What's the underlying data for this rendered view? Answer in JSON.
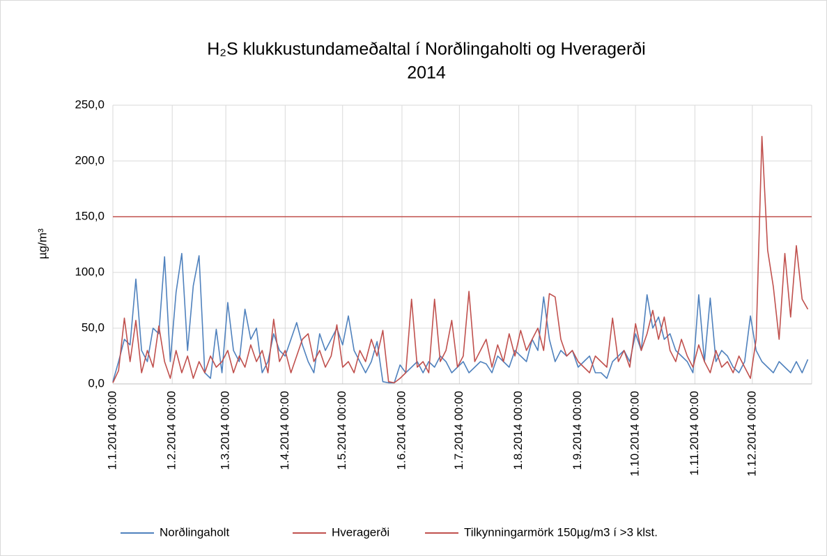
{
  "chart_data": {
    "type": "line",
    "title": "H₂S klukkustundameðaltal í Norðlingaholti og Hveragerði",
    "subtitle": "2014",
    "y_label": "µg/m³",
    "x": [
      0,
      3,
      6,
      9,
      12,
      15,
      18,
      21,
      24,
      27,
      30,
      33,
      36,
      39,
      42,
      45,
      48,
      51,
      54,
      57,
      60,
      63,
      66,
      69,
      72,
      75,
      78,
      81,
      84,
      87,
      90,
      93,
      96,
      99,
      102,
      105,
      108,
      111,
      114,
      117,
      120,
      123,
      126,
      129,
      132,
      135,
      138,
      141,
      144,
      147,
      150,
      153,
      156,
      159,
      162,
      165,
      168,
      171,
      174,
      177,
      180,
      183,
      186,
      189,
      192,
      195,
      198,
      201,
      204,
      207,
      210,
      213,
      216,
      219,
      222,
      225,
      228,
      231,
      234,
      237,
      240,
      243,
      246,
      249,
      252,
      255,
      258,
      261,
      264,
      267,
      270,
      273,
      276,
      279,
      282,
      285,
      288,
      291,
      294,
      297,
      300,
      303,
      306,
      309,
      312,
      315,
      318,
      321,
      324,
      327,
      330,
      333,
      336,
      339,
      342,
      345,
      348,
      351,
      354,
      357,
      360,
      363
    ],
    "series": [
      {
        "name": "Norðlingaholt",
        "color": "#4f81bd",
        "values": [
          2,
          20,
          40,
          35,
          94,
          30,
          20,
          50,
          45,
          114,
          20,
          82,
          117,
          30,
          88,
          115,
          10,
          5,
          49,
          10,
          73,
          30,
          20,
          67,
          40,
          50,
          10,
          20,
          45,
          30,
          25,
          40,
          55,
          35,
          20,
          10,
          45,
          30,
          40,
          50,
          35,
          61,
          30,
          20,
          10,
          20,
          38,
          2,
          1,
          1,
          17,
          10,
          15,
          20,
          10,
          20,
          15,
          25,
          20,
          10,
          15,
          20,
          10,
          15,
          20,
          18,
          10,
          25,
          20,
          15,
          30,
          25,
          20,
          40,
          30,
          78,
          40,
          20,
          30,
          25,
          30,
          15,
          20,
          25,
          10,
          10,
          5,
          20,
          25,
          30,
          20,
          45,
          30,
          80,
          50,
          60,
          40,
          45,
          30,
          25,
          20,
          10,
          80,
          20,
          77,
          20,
          30,
          25,
          15,
          10,
          20,
          61,
          30,
          20,
          15,
          10,
          20,
          15,
          10,
          20,
          10,
          22
        ]
      },
      {
        "name": "Hveragerði",
        "color": "#c0504d",
        "values": [
          1,
          12,
          59,
          20,
          57,
          10,
          30,
          15,
          52,
          20,
          5,
          30,
          10,
          25,
          5,
          20,
          10,
          25,
          15,
          20,
          30,
          10,
          25,
          15,
          35,
          20,
          30,
          10,
          58,
          20,
          30,
          10,
          25,
          40,
          45,
          20,
          30,
          15,
          25,
          53,
          15,
          20,
          10,
          30,
          20,
          40,
          25,
          48,
          2,
          1,
          5,
          10,
          76,
          15,
          20,
          10,
          76,
          20,
          30,
          57,
          15,
          25,
          83,
          20,
          30,
          40,
          15,
          35,
          20,
          45,
          25,
          48,
          30,
          40,
          50,
          30,
          81,
          78,
          40,
          25,
          30,
          20,
          15,
          10,
          25,
          20,
          15,
          59,
          20,
          30,
          15,
          54,
          30,
          45,
          66,
          40,
          60,
          30,
          20,
          40,
          25,
          15,
          35,
          20,
          10,
          30,
          15,
          20,
          10,
          25,
          15,
          5,
          40,
          222,
          120,
          87,
          40,
          117,
          60,
          124,
          76,
          67
        ]
      },
      {
        "name": "Tilkynningarmörk 150µg/m3 í >3 klst.",
        "color": "#c0504d",
        "x": [
          0,
          365
        ],
        "values": [
          150,
          150
        ]
      }
    ],
    "xlim": [
      0,
      365
    ],
    "xticks": [
      {
        "value": 0,
        "label": "1.1.2014 00:00"
      },
      {
        "value": 31,
        "label": "1.2.2014 00:00"
      },
      {
        "value": 59,
        "label": "1.3.2014 00:00"
      },
      {
        "value": 90,
        "label": "1.4.2014 00:00"
      },
      {
        "value": 120,
        "label": "1.5.2014 00:00"
      },
      {
        "value": 151,
        "label": "1.6.2014 00:00"
      },
      {
        "value": 181,
        "label": "1.7.2014 00:00"
      },
      {
        "value": 212,
        "label": "1.8.2014 00:00"
      },
      {
        "value": 243,
        "label": "1.9.2014 00:00"
      },
      {
        "value": 273,
        "label": "1.10.2014 00:00"
      },
      {
        "value": 304,
        "label": "1.11.2014 00:00"
      },
      {
        "value": 334,
        "label": "1.12.2014 00:00"
      }
    ],
    "ylim": [
      0,
      250
    ],
    "yticks": [
      {
        "value": 0,
        "label": "0,0"
      },
      {
        "value": 50,
        "label": "50,0"
      },
      {
        "value": 100,
        "label": "100,0"
      },
      {
        "value": 150,
        "label": "150,0"
      },
      {
        "value": 200,
        "label": "200,0"
      },
      {
        "value": 250,
        "label": "250,0"
      }
    ],
    "grid": true,
    "legend": "bottom"
  }
}
